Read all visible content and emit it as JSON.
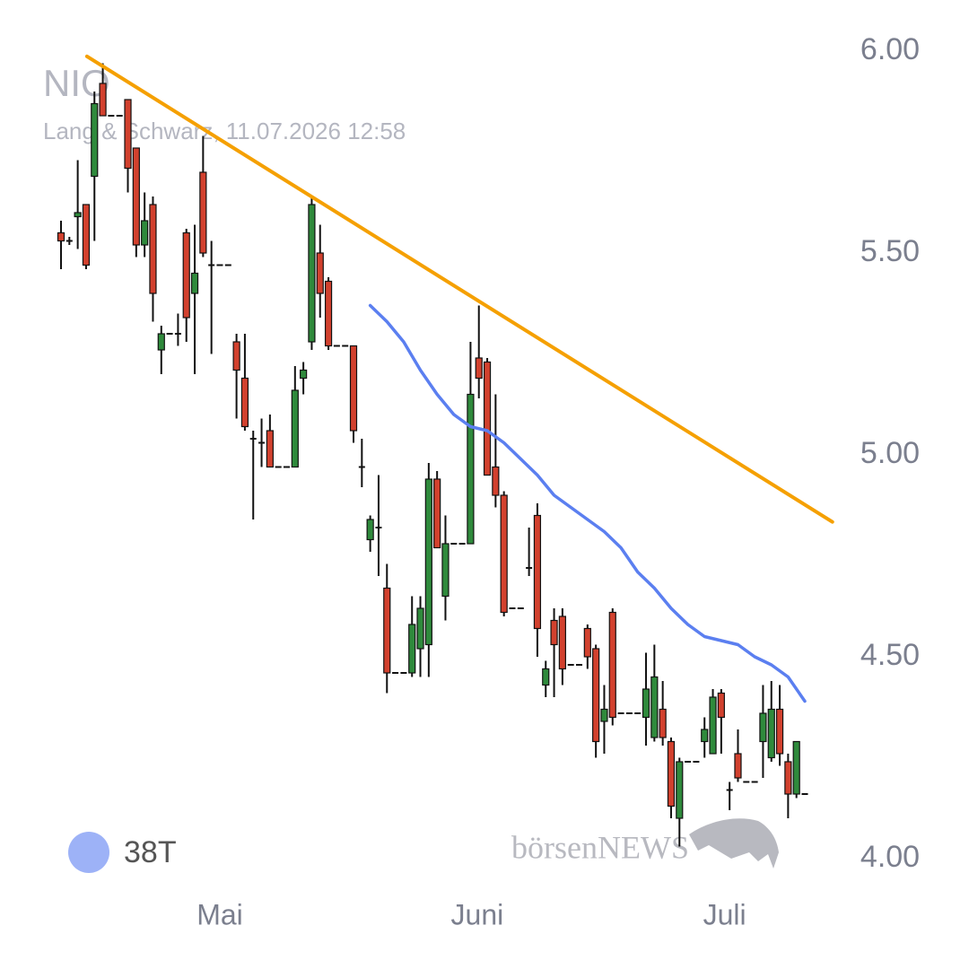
{
  "chart_data": {
    "type": "candlestick",
    "title": "NIO",
    "subtitle": "Lang & Schwarz, 11.07.2026 12:58",
    "watermark": "börsenNEWS",
    "up_color": "#2f8a3c",
    "down_color": "#d2412e",
    "grid": false,
    "x": [
      0,
      1,
      2,
      3,
      4,
      5,
      6,
      7,
      8,
      9,
      10,
      11,
      12,
      13,
      14,
      15,
      16,
      17,
      18,
      19,
      20,
      21,
      22,
      23,
      24,
      25,
      26,
      27,
      28,
      29,
      30,
      31,
      32,
      33,
      34,
      35,
      36,
      37,
      38,
      39,
      40,
      41,
      42,
      43,
      44,
      45,
      46,
      47,
      48,
      49,
      50,
      51,
      52,
      53,
      54,
      55,
      56,
      57,
      58,
      59,
      60,
      61,
      62,
      63,
      64,
      65,
      66,
      67,
      68,
      69,
      70,
      71,
      72,
      73,
      74,
      75,
      76,
      77,
      78,
      79,
      80,
      81,
      82,
      83,
      84,
      85,
      86,
      87,
      88,
      89
    ],
    "open": [
      5.55,
      5.53,
      5.59,
      5.62,
      5.69,
      5.92,
      5.84,
      5.84,
      5.88,
      5.76,
      5.52,
      5.62,
      5.26,
      5.3,
      5.3,
      5.55,
      5.4,
      5.7,
      5.47,
      5.47,
      5.47,
      5.28,
      5.19,
      5.04,
      5.03,
      5.06,
      4.97,
      4.97,
      4.97,
      5.19,
      5.28,
      5.5,
      5.43,
      5.27,
      5.27,
      5.27,
      4.97,
      4.79,
      4.82,
      4.67,
      4.46,
      4.46,
      4.46,
      4.52,
      4.53,
      4.94,
      4.65,
      4.78,
      4.78,
      4.78,
      5.24,
      5.23,
      4.97,
      4.9,
      4.62,
      4.62,
      4.72,
      4.85,
      4.43,
      4.59,
      4.6,
      4.48,
      4.48,
      4.57,
      4.52,
      4.34,
      4.61,
      4.36,
      4.36,
      4.36,
      4.35,
      4.3,
      4.37,
      4.29,
      4.1,
      4.24,
      4.24,
      4.29,
      4.26,
      4.41,
      4.17,
      4.26,
      4.19,
      4.19,
      4.29,
      4.25,
      4.37,
      4.24,
      4.16,
      4.16
    ],
    "high": [
      5.58,
      5.54,
      5.73,
      5.62,
      5.9,
      5.97,
      5.84,
      5.84,
      5.88,
      5.76,
      5.65,
      5.64,
      5.32,
      5.3,
      5.35,
      5.56,
      5.57,
      5.79,
      5.53,
      5.47,
      5.47,
      5.3,
      5.3,
      5.06,
      5.09,
      5.1,
      4.97,
      4.97,
      5.22,
      5.23,
      5.64,
      5.57,
      5.44,
      5.27,
      5.27,
      5.27,
      5.04,
      4.85,
      4.95,
      4.73,
      4.46,
      4.46,
      4.65,
      4.65,
      4.98,
      4.96,
      4.85,
      4.78,
      4.78,
      5.28,
      5.37,
      5.24,
      5.15,
      4.91,
      4.62,
      4.62,
      4.82,
      4.88,
      4.49,
      4.62,
      4.62,
      4.48,
      4.48,
      4.58,
      4.53,
      4.43,
      4.62,
      4.36,
      4.36,
      4.36,
      4.51,
      4.53,
      4.44,
      4.3,
      4.25,
      4.24,
      4.24,
      4.35,
      4.42,
      4.42,
      4.19,
      4.32,
      4.19,
      4.19,
      4.43,
      4.44,
      4.43,
      4.26,
      4.29,
      4.16
    ],
    "low": [
      5.46,
      5.52,
      5.51,
      5.46,
      5.53,
      5.84,
      5.84,
      5.84,
      5.65,
      5.49,
      5.49,
      5.33,
      5.2,
      5.3,
      5.27,
      5.28,
      5.2,
      5.49,
      5.25,
      5.47,
      5.47,
      5.09,
      5.06,
      4.84,
      4.97,
      4.97,
      4.97,
      4.97,
      4.97,
      5.15,
      5.26,
      5.34,
      5.26,
      5.27,
      5.27,
      5.03,
      4.92,
      4.76,
      4.7,
      4.41,
      4.46,
      4.46,
      4.45,
      4.45,
      4.45,
      4.77,
      4.59,
      4.78,
      4.78,
      4.78,
      5.14,
      4.95,
      4.87,
      4.6,
      4.62,
      4.62,
      4.7,
      4.5,
      4.4,
      4.4,
      4.43,
      4.48,
      4.48,
      4.47,
      4.25,
      4.26,
      4.33,
      4.36,
      4.36,
      4.36,
      4.28,
      4.29,
      4.28,
      4.1,
      4.03,
      4.24,
      4.24,
      4.25,
      4.26,
      4.26,
      4.12,
      4.19,
      4.19,
      4.19,
      4.2,
      4.24,
      4.23,
      4.1,
      4.15,
      4.16
    ],
    "close": [
      5.53,
      5.53,
      5.6,
      5.47,
      5.87,
      5.84,
      5.84,
      5.84,
      5.71,
      5.52,
      5.58,
      5.4,
      5.3,
      5.3,
      5.3,
      5.34,
      5.45,
      5.5,
      5.47,
      5.47,
      5.47,
      5.21,
      5.07,
      5.04,
      5.03,
      4.97,
      4.97,
      4.97,
      5.16,
      5.21,
      5.62,
      5.4,
      5.27,
      5.27,
      5.27,
      5.06,
      4.97,
      4.84,
      4.82,
      4.46,
      4.46,
      4.46,
      4.58,
      4.62,
      4.94,
      4.77,
      4.78,
      4.78,
      4.78,
      5.15,
      5.19,
      4.95,
      4.9,
      4.61,
      4.62,
      4.62,
      4.72,
      4.57,
      4.47,
      4.53,
      4.47,
      4.48,
      4.48,
      4.5,
      4.29,
      4.37,
      4.35,
      4.36,
      4.36,
      4.36,
      4.42,
      4.45,
      4.3,
      4.13,
      4.24,
      4.24,
      4.24,
      4.32,
      4.4,
      4.35,
      4.17,
      4.2,
      4.19,
      4.19,
      4.36,
      4.37,
      4.26,
      4.16,
      4.29,
      4.16
    ],
    "lines": [
      {
        "name": "38T",
        "color": "#5b7ff0",
        "legend_color": "#9db2f7",
        "x": [
          37,
          39,
          41,
          43,
          45,
          47,
          49,
          51,
          53,
          55,
          57,
          59,
          61,
          63,
          65,
          67,
          69,
          71,
          73,
          75,
          77,
          79,
          81,
          83,
          85,
          87,
          89
        ],
        "values": [
          5.37,
          5.33,
          5.28,
          5.21,
          5.15,
          5.1,
          5.07,
          5.06,
          5.03,
          4.99,
          4.95,
          4.9,
          4.87,
          4.84,
          4.81,
          4.77,
          4.71,
          4.67,
          4.62,
          4.58,
          4.55,
          4.54,
          4.53,
          4.5,
          4.48,
          4.45,
          4.39
        ]
      }
    ],
    "trendline": {
      "color": "#f5a000",
      "x": [
        3.1,
        92.3
      ],
      "values": [
        5.987,
        4.834
      ]
    },
    "xlim": [
      0,
      89
    ],
    "xticks": [
      {
        "value": 19,
        "label": "Mai"
      },
      {
        "value": 49.8,
        "label": "Juni"
      },
      {
        "value": 79.4,
        "label": "Juli"
      }
    ],
    "ylim": [
      4,
      6
    ],
    "yticks": [
      {
        "value": 4,
        "label": "4.00"
      },
      {
        "value": 4.5,
        "label": "4.50"
      },
      {
        "value": 5,
        "label": "5.00"
      },
      {
        "value": 5.5,
        "label": "5.50"
      },
      {
        "value": 6,
        "label": "6.00"
      }
    ]
  }
}
